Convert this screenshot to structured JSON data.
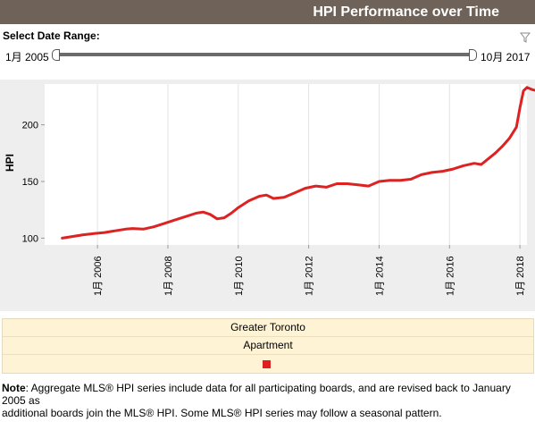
{
  "header": {
    "title": "HPI Performance over Time"
  },
  "range": {
    "label": "Select Date Range:",
    "start": "1月 2005",
    "end": "10月 2017"
  },
  "legend": {
    "region": "Greater Toronto",
    "type": "Apartment"
  },
  "note": {
    "lead": "Note",
    "text": ": Aggregate MLS® HPI series include data for all participating boards, and are revised back to January 2005 as",
    "text2": "additional boards join the MLS® HPI. Some MLS® HPI series may follow a seasonal pattern."
  },
  "colors": {
    "line": "#dd2222",
    "header": "#6f6258",
    "legend_bg": "#fff3d6"
  },
  "chart_data": {
    "type": "line",
    "ylabel": "HPI",
    "ylim": [
      94,
      236
    ],
    "xlim": [
      2004.5,
      2018.2
    ],
    "yticks": [
      100,
      150,
      200
    ],
    "xticks": [
      {
        "value": 2006,
        "label": "1月 2006"
      },
      {
        "value": 2008,
        "label": "1月 2008"
      },
      {
        "value": 2010,
        "label": "1月 2010"
      },
      {
        "value": 2012,
        "label": "1月 2012"
      },
      {
        "value": 2014,
        "label": "1月 2014"
      },
      {
        "value": 2016,
        "label": "1月 2016"
      },
      {
        "value": 2018,
        "label": "1月 2018"
      }
    ],
    "series": [
      {
        "values": [
          [
            2005.0,
            100
          ],
          [
            2005.3,
            101.5
          ],
          [
            2005.6,
            103
          ],
          [
            2005.9,
            104
          ],
          [
            2006.2,
            105
          ],
          [
            2006.5,
            106.5
          ],
          [
            2006.8,
            108
          ],
          [
            2007.0,
            108.5
          ],
          [
            2007.3,
            108
          ],
          [
            2007.6,
            110
          ],
          [
            2007.9,
            113
          ],
          [
            2008.2,
            116
          ],
          [
            2008.5,
            119
          ],
          [
            2008.8,
            122
          ],
          [
            2009.0,
            123
          ],
          [
            2009.2,
            121
          ],
          [
            2009.4,
            117
          ],
          [
            2009.6,
            118
          ],
          [
            2009.8,
            122
          ],
          [
            2010.0,
            127
          ],
          [
            2010.3,
            133
          ],
          [
            2010.6,
            137
          ],
          [
            2010.8,
            138
          ],
          [
            2011.0,
            135
          ],
          [
            2011.3,
            136
          ],
          [
            2011.6,
            140
          ],
          [
            2011.9,
            144
          ],
          [
            2012.2,
            146
          ],
          [
            2012.5,
            145
          ],
          [
            2012.8,
            148
          ],
          [
            2013.1,
            148
          ],
          [
            2013.4,
            147
          ],
          [
            2013.7,
            146
          ],
          [
            2014.0,
            150
          ],
          [
            2014.3,
            151
          ],
          [
            2014.6,
            151
          ],
          [
            2014.9,
            152
          ],
          [
            2015.2,
            156
          ],
          [
            2015.5,
            158
          ],
          [
            2015.8,
            159
          ],
          [
            2016.1,
            161
          ],
          [
            2016.4,
            164
          ],
          [
            2016.7,
            166
          ],
          [
            2016.9,
            165
          ],
          [
            2017.1,
            170
          ],
          [
            2017.3,
            175
          ],
          [
            2017.5,
            181
          ],
          [
            2017.7,
            188
          ],
          [
            2017.9,
            198
          ],
          [
            2018.0,
            215
          ],
          [
            2018.1,
            230
          ],
          [
            2018.2,
            233
          ],
          [
            2018.35,
            231
          ],
          [
            2018.5,
            230
          ],
          [
            2018.6,
            232
          ]
        ]
      }
    ]
  }
}
